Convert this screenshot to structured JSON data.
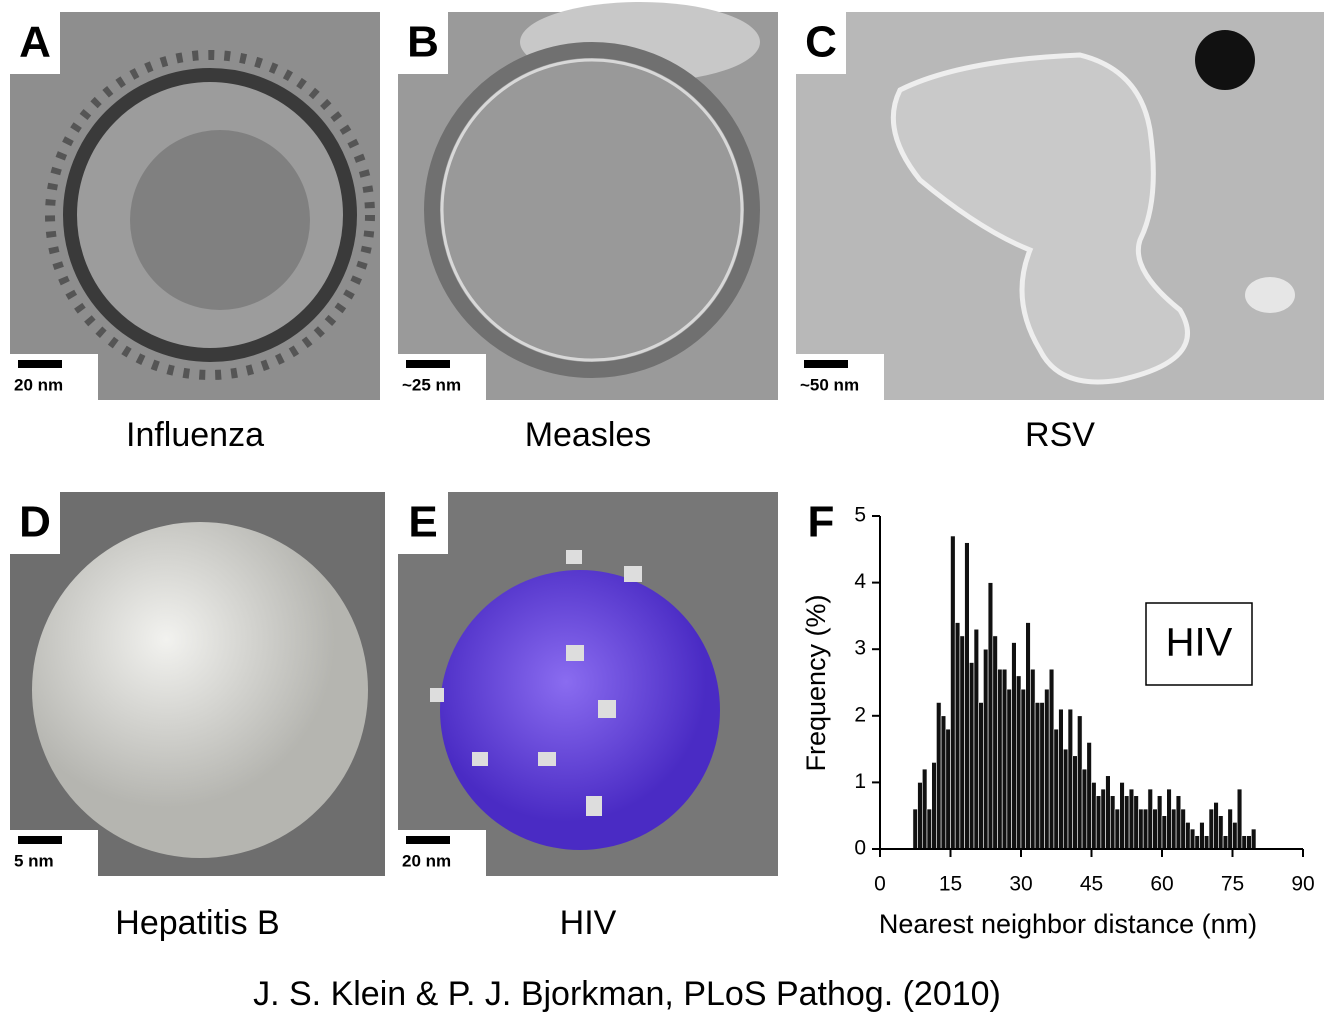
{
  "panels": [
    {
      "letter": "A",
      "scale": "20 nm",
      "caption": "Influenza"
    },
    {
      "letter": "B",
      "scale": "~25 nm",
      "caption": "Measles"
    },
    {
      "letter": "C",
      "scale": "~50 nm",
      "caption": "RSV"
    },
    {
      "letter": "D",
      "scale": "5 nm",
      "caption": "Hepatitis B"
    },
    {
      "letter": "E",
      "scale": "20 nm",
      "caption": "HIV"
    },
    {
      "letter": "F"
    }
  ],
  "chart_data": {
    "type": "histogram",
    "annotation": "HIV",
    "xlabel": "Nearest neighbor distance (nm)",
    "ylabel": "Frequency (%)",
    "bins": [
      7,
      8,
      9,
      10,
      11,
      12,
      13,
      14,
      15,
      16,
      17,
      18,
      19,
      20,
      21,
      22,
      23,
      24,
      25,
      26,
      27,
      28,
      29,
      30,
      31,
      32,
      33,
      34,
      35,
      36,
      37,
      38,
      39,
      40,
      41,
      42,
      43,
      44,
      45,
      46,
      47,
      48,
      49,
      50,
      51,
      52,
      53,
      54,
      55,
      56,
      57,
      58,
      59,
      60,
      61,
      62,
      63,
      64,
      65,
      66,
      67,
      68,
      69,
      70,
      71,
      72,
      73,
      74,
      75,
      76,
      77,
      78,
      79,
      80
    ],
    "values": [
      0.6,
      1.0,
      1.2,
      0.6,
      1.3,
      2.2,
      2.0,
      1.8,
      4.7,
      3.4,
      3.2,
      4.6,
      2.8,
      3.3,
      2.2,
      3.0,
      4.0,
      3.2,
      2.7,
      2.7,
      2.4,
      3.1,
      2.6,
      2.4,
      3.4,
      2.7,
      2.2,
      2.2,
      2.4,
      2.7,
      1.8,
      2.1,
      1.5,
      2.1,
      1.4,
      2.0,
      1.2,
      1.6,
      1.0,
      0.8,
      0.9,
      1.1,
      0.8,
      0.6,
      1.0,
      0.8,
      0.9,
      0.8,
      0.6,
      0.6,
      0.9,
      0.6,
      0.8,
      0.5,
      0.9,
      0.6,
      0.8,
      0.6,
      0.4,
      0.3,
      0.2,
      0.4,
      0.2,
      0.6,
      0.7,
      0.5,
      0.2,
      0.6,
      0.4,
      0.9,
      0.2,
      0.2,
      0.3
    ],
    "color": "#111111",
    "xlim": [
      0,
      90
    ],
    "xticks": [
      0,
      15,
      30,
      45,
      60,
      75,
      90
    ],
    "ylim": [
      0,
      5
    ],
    "yticks": [
      0,
      1,
      2,
      3,
      4,
      5
    ]
  },
  "citation": "J. S. Klein & P. J. Bjorkman, PLoS Pathog. (2010)"
}
